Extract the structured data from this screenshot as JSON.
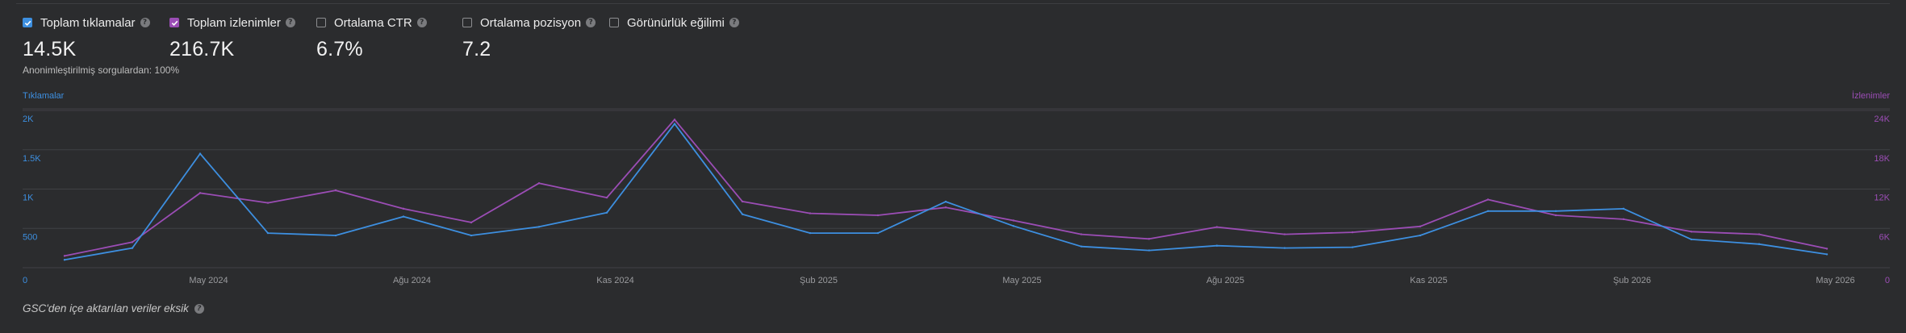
{
  "metrics": [
    {
      "label": "Toplam tıklamalar",
      "value": "14.5K",
      "checked": true,
      "color": "#3d8fe0"
    },
    {
      "label": "Toplam izlenimler",
      "value": "216.7K",
      "checked": true,
      "color": "#9b4db5"
    },
    {
      "label": "Ortalama CTR",
      "value": "6.7%",
      "checked": false
    },
    {
      "label": "Ortalama pozisyon",
      "value": "7.2",
      "checked": false
    },
    {
      "label": "Görünürlük eğilimi",
      "value": "",
      "checked": false
    }
  ],
  "anonymized_note": "Anonimleştirilmiş sorgulardan: 100%",
  "footer_note": "GSC'den içe aktarılan veriler eksik",
  "colors": {
    "clicks": "#3d8fe0",
    "impressions": "#9b4db5"
  },
  "chart_data": {
    "type": "line",
    "left_axis_label": "Tıklamalar",
    "right_axis_label": "İzlenimler",
    "left_ylim": [
      0,
      2000
    ],
    "right_ylim": [
      0,
      24000
    ],
    "left_ticks": [
      {
        "value": 0,
        "label": "0"
      },
      {
        "value": 500,
        "label": "500"
      },
      {
        "value": 1000,
        "label": "1K"
      },
      {
        "value": 1500,
        "label": "1.5K"
      },
      {
        "value": 2000,
        "label": "2K"
      }
    ],
    "right_ticks": [
      {
        "value": 0,
        "label": "0"
      },
      {
        "value": 6000,
        "label": "6K"
      },
      {
        "value": 12000,
        "label": "12K"
      },
      {
        "value": 18000,
        "label": "18K"
      },
      {
        "value": 24000,
        "label": "24K"
      }
    ],
    "x_ticks": [
      {
        "index": 4.25,
        "label": "May 2024"
      },
      {
        "index": 10.25,
        "label": "Ağu 2024"
      },
      {
        "index": 16.25,
        "label": "Kas 2024"
      },
      {
        "index": 22.25,
        "label": "Şub 2025"
      },
      {
        "index": 28.25,
        "label": "May 2025"
      },
      {
        "index": 34.25,
        "label": "Ağu 2025"
      },
      {
        "index": 40.25,
        "label": "Kas 2025"
      },
      {
        "index": 46.25,
        "label": "Şub 2026"
      },
      {
        "index": 52.25,
        "label": "May 2026"
      }
    ],
    "x_count": 54,
    "series": [
      {
        "name": "Toplam tıklamalar",
        "axis": "left",
        "x": [
          0,
          2,
          4,
          6,
          8,
          10,
          12,
          14,
          16,
          18,
          20,
          22,
          24,
          26,
          28,
          30,
          32,
          34,
          36,
          38,
          40,
          42,
          44,
          46,
          48,
          50,
          52
        ],
        "values": [
          100,
          250,
          1450,
          440,
          410,
          650,
          410,
          520,
          700,
          1830,
          680,
          440,
          440,
          840,
          530,
          270,
          220,
          280,
          250,
          260,
          410,
          720,
          720,
          750,
          360,
          300,
          170
        ]
      },
      {
        "name": "Toplam izlenimler",
        "axis": "right",
        "x": [
          0,
          2,
          4,
          6,
          8,
          10,
          12,
          14,
          16,
          18,
          20,
          22,
          24,
          26,
          28,
          30,
          32,
          34,
          36,
          38,
          40,
          42,
          44,
          46,
          48,
          50,
          52
        ],
        "values": [
          1800,
          3900,
          11400,
          9900,
          11800,
          9000,
          6900,
          12900,
          10700,
          22600,
          10100,
          8300,
          8000,
          9200,
          7200,
          5100,
          4400,
          6200,
          5100,
          5400,
          6300,
          10400,
          8000,
          7400,
          5500,
          5100,
          2900
        ]
      }
    ]
  }
}
